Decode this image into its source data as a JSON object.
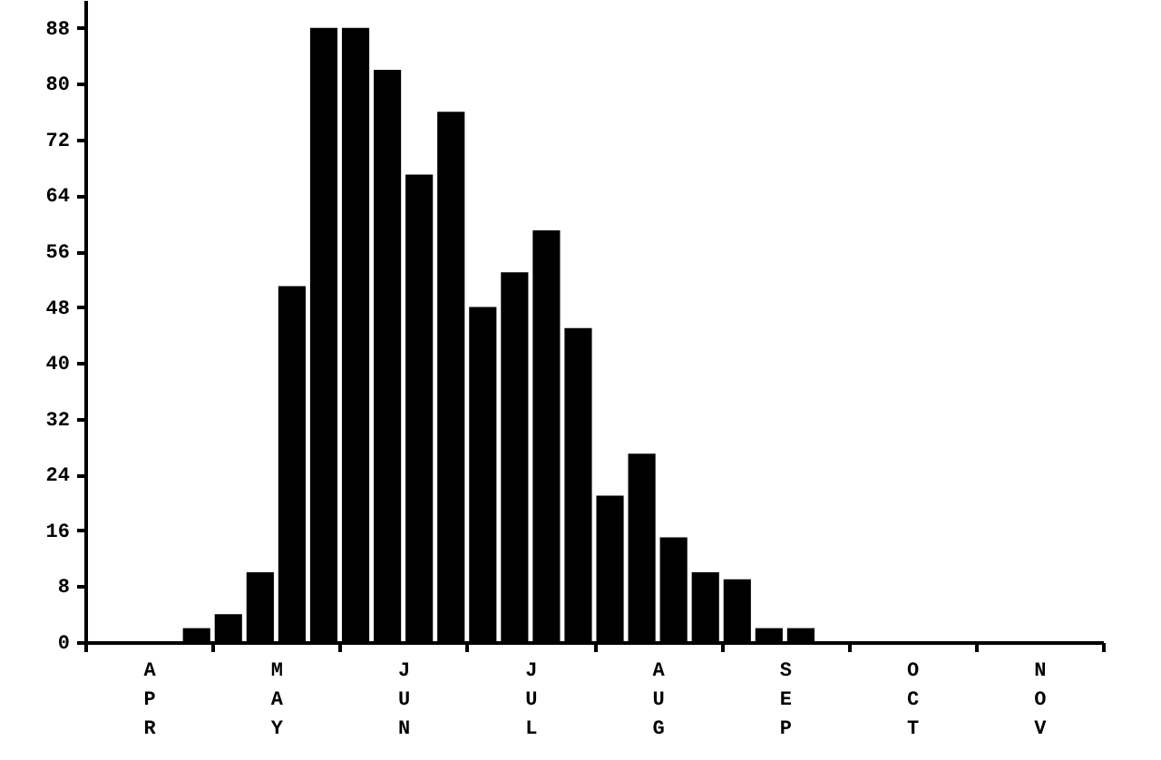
{
  "chart_data": {
    "type": "bar",
    "categories": [
      "APR",
      "MAY",
      "JUN",
      "JUL",
      "AUG",
      "SEP",
      "OCT",
      "NOV"
    ],
    "series": [
      {
        "color": "#000000",
        "values": [
          null,
          4,
          88,
          48,
          21,
          9,
          null,
          null
        ]
      },
      {
        "color": "#000000",
        "values": [
          null,
          10,
          82,
          53,
          27,
          2,
          null,
          null
        ]
      },
      {
        "color": "#000000",
        "values": [
          null,
          51,
          67,
          59,
          15,
          2,
          null,
          null
        ]
      },
      {
        "color": "#000000",
        "values": [
          2,
          88,
          76,
          45,
          10,
          null,
          null,
          null
        ]
      }
    ],
    "ylim": [
      0,
      92
    ],
    "yticks": [
      0,
      8,
      16,
      24,
      32,
      40,
      48,
      56,
      64,
      72,
      80,
      88
    ]
  }
}
